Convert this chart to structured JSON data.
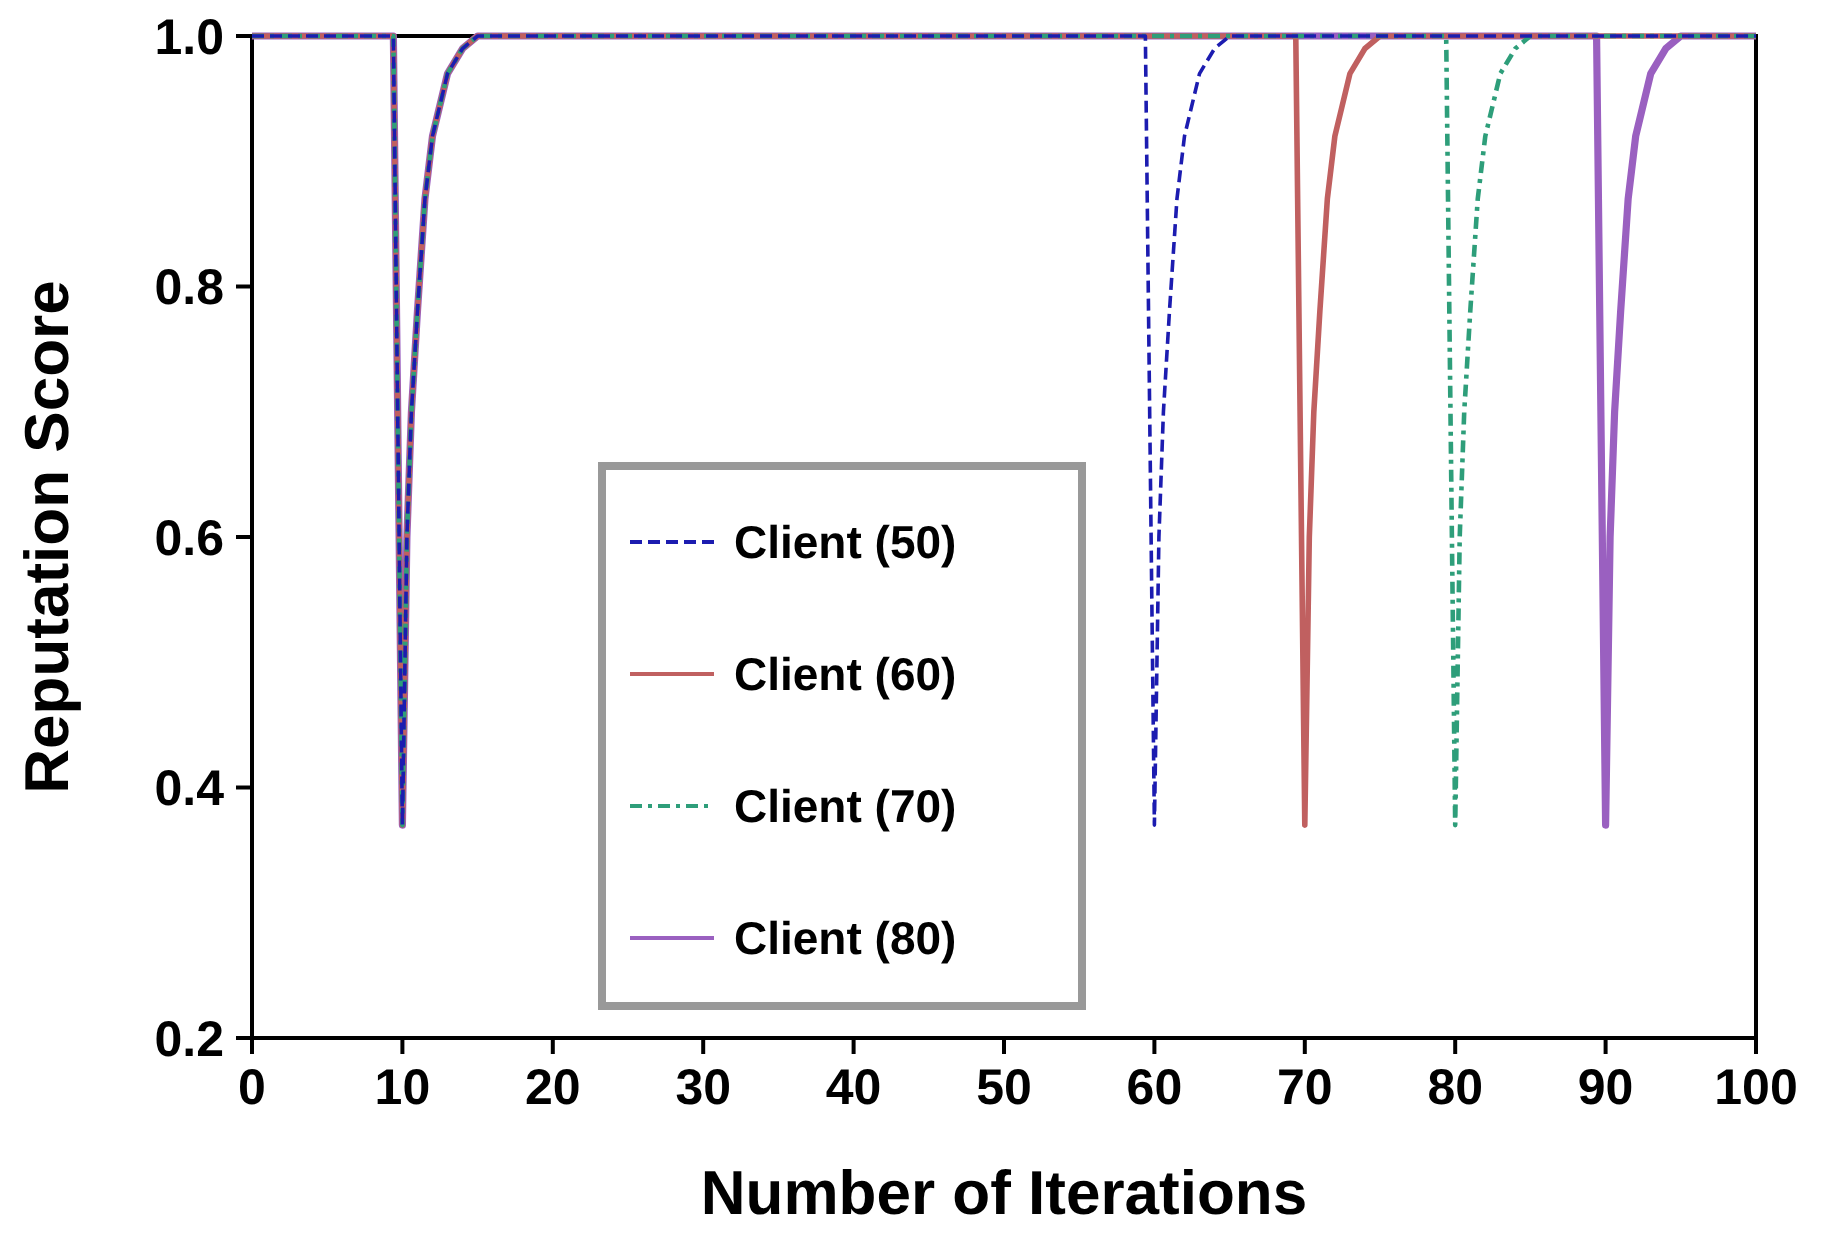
{
  "chart_data": {
    "type": "line",
    "xlabel": "Number of Iterations",
    "ylabel": "Reputation Score",
    "xlim": [
      0,
      100
    ],
    "ylim": [
      0.2,
      1.0
    ],
    "xticks": [
      0,
      10,
      20,
      30,
      40,
      50,
      60,
      70,
      80,
      90,
      100
    ],
    "yticks": [
      {
        "value": 0.2,
        "label": "0.2"
      },
      {
        "value": 0.4,
        "label": "0.4"
      },
      {
        "value": 0.6,
        "label": "0.6"
      },
      {
        "value": 0.8,
        "label": "0.8"
      },
      {
        "value": 1.0,
        "label": "1.0"
      }
    ],
    "legend": "bottom",
    "grid": false,
    "series": [
      {
        "name": "Client (50)",
        "color": "#1c1cb0",
        "line_style": "dashed",
        "x": [
          0,
          9.4,
          10,
          10.3,
          10.6,
          11,
          11.5,
          12,
          13,
          14,
          15,
          59.4,
          60,
          60.3,
          60.6,
          61,
          61.5,
          62,
          63,
          64,
          65,
          100
        ],
        "values": [
          1,
          1,
          0.37,
          0.6,
          0.7,
          0.78,
          0.87,
          0.92,
          0.97,
          0.99,
          1,
          1,
          0.37,
          0.6,
          0.7,
          0.78,
          0.87,
          0.92,
          0.97,
          0.99,
          1,
          1
        ]
      },
      {
        "name": "Client (60)",
        "color": "#c06060",
        "line_style": "solid",
        "x": [
          0,
          9.4,
          10,
          10.3,
          10.6,
          11,
          11.5,
          12,
          13,
          14,
          15,
          69.4,
          70,
          70.3,
          70.6,
          71,
          71.5,
          72,
          73,
          74,
          75,
          100
        ],
        "values": [
          1,
          1,
          0.37,
          0.6,
          0.7,
          0.78,
          0.87,
          0.92,
          0.97,
          0.99,
          1,
          1,
          0.37,
          0.6,
          0.7,
          0.78,
          0.87,
          0.92,
          0.97,
          0.99,
          1,
          1
        ]
      },
      {
        "name": "Client (70)",
        "color": "#2e9e7a",
        "line_style": "dashdot",
        "x": [
          0,
          9.4,
          10,
          10.3,
          10.6,
          11,
          11.5,
          12,
          13,
          14,
          15,
          79.4,
          80,
          80.3,
          80.6,
          81,
          81.5,
          82,
          83,
          84,
          85,
          100
        ],
        "values": [
          1,
          1,
          0.37,
          0.6,
          0.7,
          0.78,
          0.87,
          0.92,
          0.97,
          0.99,
          1,
          1,
          0.37,
          0.6,
          0.7,
          0.78,
          0.87,
          0.92,
          0.97,
          0.99,
          1,
          1
        ]
      },
      {
        "name": "Client (80)",
        "color": "#9a60c0",
        "line_style": "solid",
        "x": [
          0,
          9.4,
          10,
          10.3,
          10.6,
          11,
          11.5,
          12,
          13,
          14,
          15,
          89.4,
          90,
          90.3,
          90.6,
          91,
          91.5,
          92,
          93,
          94,
          95,
          100
        ],
        "values": [
          1,
          1,
          0.37,
          0.6,
          0.7,
          0.78,
          0.87,
          0.92,
          0.97,
          0.99,
          1,
          1,
          0.37,
          0.6,
          0.7,
          0.78,
          0.87,
          0.92,
          0.97,
          0.99,
          1,
          1
        ]
      }
    ]
  }
}
